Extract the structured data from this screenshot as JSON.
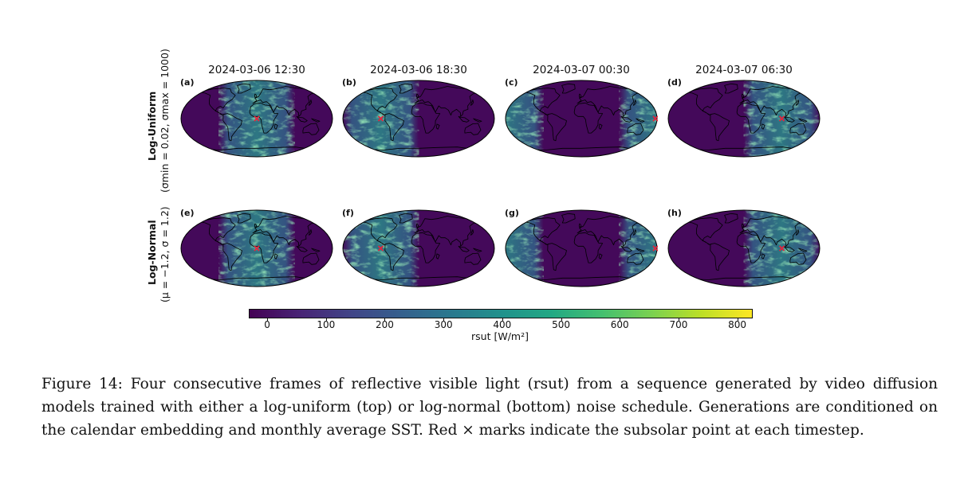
{
  "figure": {
    "columns": [
      {
        "title": "2024-03-06 12:30"
      },
      {
        "title": "2024-03-06 18:30"
      },
      {
        "title": "2024-03-07 00:30"
      },
      {
        "title": "2024-03-07 06:30"
      }
    ],
    "rows": [
      {
        "label_main": "Log-Uniform",
        "label_params": "(σmin = 0.02, σmax = 1000)"
      },
      {
        "label_main": "Log-Normal",
        "label_params": "(μ = −1.2, σ = 1.2)"
      }
    ],
    "panels": [
      {
        "label": "(a)",
        "subsolar_lon": 0,
        "subsolar_lat": 0
      },
      {
        "label": "(b)",
        "subsolar_lon": -90,
        "subsolar_lat": 0
      },
      {
        "label": "(c)",
        "subsolar_lon": 180,
        "subsolar_lat": 0
      },
      {
        "label": "(d)",
        "subsolar_lon": 90,
        "subsolar_lat": 0
      },
      {
        "label": "(e)",
        "subsolar_lon": 0,
        "subsolar_lat": 0
      },
      {
        "label": "(f)",
        "subsolar_lon": -90,
        "subsolar_lat": 0
      },
      {
        "label": "(g)",
        "subsolar_lon": 180,
        "subsolar_lat": 0
      },
      {
        "label": "(h)",
        "subsolar_lon": 90,
        "subsolar_lat": 0
      }
    ],
    "colorbar": {
      "label": "rsut [W/m²]",
      "min": -30,
      "max": 825,
      "ticks": [
        "0",
        "100",
        "200",
        "300",
        "400",
        "500",
        "600",
        "700",
        "800"
      ],
      "colormap": "viridis"
    },
    "marker_color": "#e8223a"
  },
  "caption": "Figure 14: Four consecutive frames of reflective visible light (rsut) from a sequence generated by video diffusion models trained with either a log-uniform (top) or log-normal (bottom) noise schedule. Generations are conditioned on the calendar embedding and monthly average SST. Red × marks indicate the subsolar point at each timestep."
}
